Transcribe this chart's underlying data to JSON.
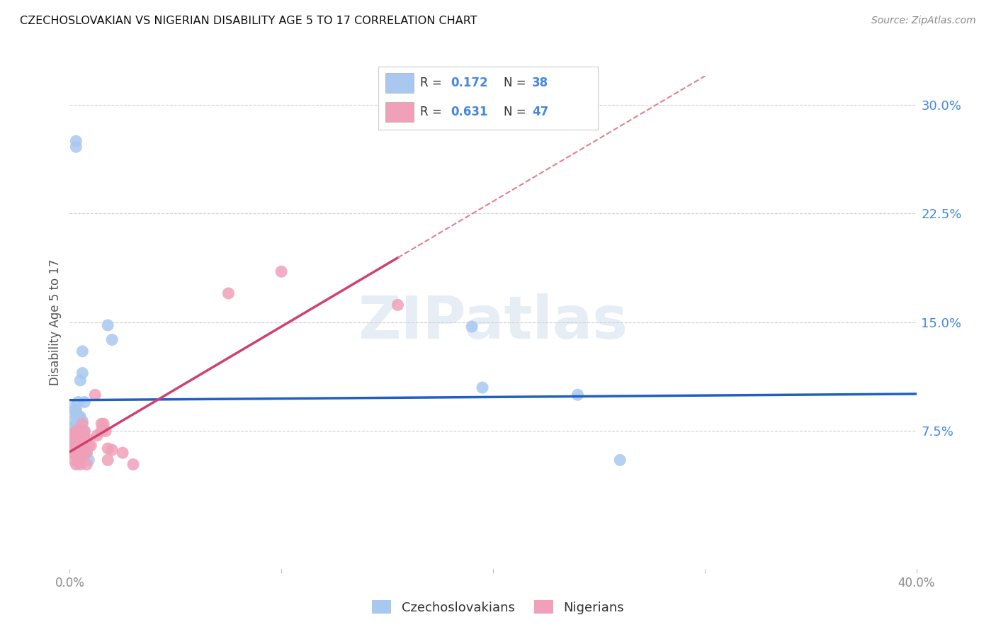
{
  "title": "CZECHOSLOVAKIAN VS NIGERIAN DISABILITY AGE 5 TO 17 CORRELATION CHART",
  "source": "Source: ZipAtlas.com",
  "ylabel": "Disability Age 5 to 17",
  "xlim": [
    0.0,
    0.4
  ],
  "ylim": [
    -0.02,
    0.32
  ],
  "xticks": [
    0.0,
    0.1,
    0.2,
    0.3,
    0.4
  ],
  "xticklabels": [
    "0.0%",
    "",
    "",
    "",
    "40.0%"
  ],
  "yticks": [
    0.075,
    0.15,
    0.225,
    0.3
  ],
  "yticklabels": [
    "7.5%",
    "15.0%",
    "22.5%",
    "30.0%"
  ],
  "grid_color": "#d0d0d0",
  "background_color": "#ffffff",
  "czech_color": "#a8c8f0",
  "nigerian_color": "#f0a0b8",
  "czech_line_color": "#2060c0",
  "nigerian_line_color": "#d04070",
  "dashed_line_color": "#e08090",
  "legend_R1": "0.172",
  "legend_N1": "38",
  "legend_R2": "0.631",
  "legend_N2": "47",
  "watermark": "ZIPatlas",
  "czech_scatter": [
    [
      0.001,
      0.088
    ],
    [
      0.001,
      0.091
    ],
    [
      0.002,
      0.082
    ],
    [
      0.002,
      0.078
    ],
    [
      0.002,
      0.075
    ],
    [
      0.003,
      0.09
    ],
    [
      0.003,
      0.088
    ],
    [
      0.003,
      0.08
    ],
    [
      0.003,
      0.072
    ],
    [
      0.003,
      0.068
    ],
    [
      0.003,
      0.271
    ],
    [
      0.003,
      0.275
    ],
    [
      0.004,
      0.095
    ],
    [
      0.004,
      0.085
    ],
    [
      0.004,
      0.082
    ],
    [
      0.004,
      0.07
    ],
    [
      0.004,
      0.065
    ],
    [
      0.004,
      0.06
    ],
    [
      0.005,
      0.11
    ],
    [
      0.005,
      0.085
    ],
    [
      0.005,
      0.08
    ],
    [
      0.005,
      0.072
    ],
    [
      0.005,
      0.065
    ],
    [
      0.006,
      0.13
    ],
    [
      0.006,
      0.115
    ],
    [
      0.006,
      0.082
    ],
    [
      0.006,
      0.075
    ],
    [
      0.006,
      0.065
    ],
    [
      0.007,
      0.095
    ],
    [
      0.007,
      0.075
    ],
    [
      0.008,
      0.06
    ],
    [
      0.009,
      0.055
    ],
    [
      0.018,
      0.148
    ],
    [
      0.02,
      0.138
    ],
    [
      0.19,
      0.147
    ],
    [
      0.195,
      0.105
    ],
    [
      0.24,
      0.1
    ],
    [
      0.26,
      0.055
    ]
  ],
  "nigerian_scatter": [
    [
      0.001,
      0.07
    ],
    [
      0.001,
      0.068
    ],
    [
      0.001,
      0.064
    ],
    [
      0.002,
      0.073
    ],
    [
      0.002,
      0.07
    ],
    [
      0.002,
      0.065
    ],
    [
      0.002,
      0.06
    ],
    [
      0.002,
      0.055
    ],
    [
      0.003,
      0.075
    ],
    [
      0.003,
      0.07
    ],
    [
      0.003,
      0.065
    ],
    [
      0.003,
      0.058
    ],
    [
      0.003,
      0.052
    ],
    [
      0.004,
      0.072
    ],
    [
      0.004,
      0.068
    ],
    [
      0.004,
      0.06
    ],
    [
      0.004,
      0.055
    ],
    [
      0.005,
      0.075
    ],
    [
      0.005,
      0.068
    ],
    [
      0.005,
      0.06
    ],
    [
      0.005,
      0.052
    ],
    [
      0.006,
      0.08
    ],
    [
      0.006,
      0.072
    ],
    [
      0.006,
      0.065
    ],
    [
      0.006,
      0.058
    ],
    [
      0.007,
      0.075
    ],
    [
      0.007,
      0.07
    ],
    [
      0.007,
      0.062
    ],
    [
      0.008,
      0.07
    ],
    [
      0.008,
      0.06
    ],
    [
      0.008,
      0.052
    ],
    [
      0.009,
      0.065
    ],
    [
      0.01,
      0.065
    ],
    [
      0.012,
      0.1
    ],
    [
      0.013,
      0.072
    ],
    [
      0.015,
      0.08
    ],
    [
      0.015,
      0.075
    ],
    [
      0.016,
      0.08
    ],
    [
      0.017,
      0.075
    ],
    [
      0.018,
      0.063
    ],
    [
      0.018,
      0.055
    ],
    [
      0.02,
      0.062
    ],
    [
      0.025,
      0.06
    ],
    [
      0.03,
      0.052
    ],
    [
      0.075,
      0.17
    ],
    [
      0.1,
      0.185
    ],
    [
      0.155,
      0.162
    ]
  ]
}
